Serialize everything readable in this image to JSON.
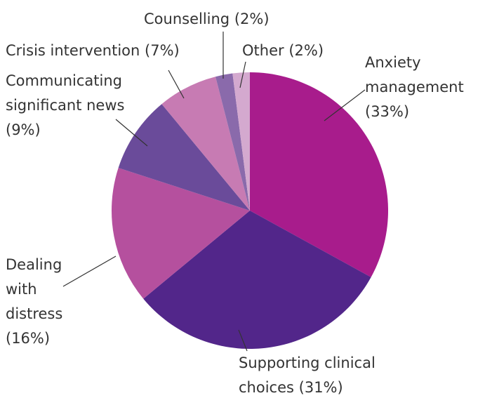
{
  "chart_data": {
    "type": "pie",
    "categories": [
      "Anxiety management",
      "Supporting clinical choices",
      "Dealing with distress",
      "Communicating significant news",
      "Crisis intervention",
      "Counselling",
      "Other"
    ],
    "values": [
      33,
      31,
      16,
      9,
      7,
      2,
      2
    ],
    "value_labels": [
      "(33%)",
      "(31%)",
      "(16%)",
      "(9%)",
      "(7%)",
      "(2%)",
      "(2%)"
    ],
    "colors": [
      "#a81c8c",
      "#52268a",
      "#b5509e",
      "#6a4b9a",
      "#c77bb3",
      "#8a6aab",
      "#d4a9cf"
    ]
  }
}
